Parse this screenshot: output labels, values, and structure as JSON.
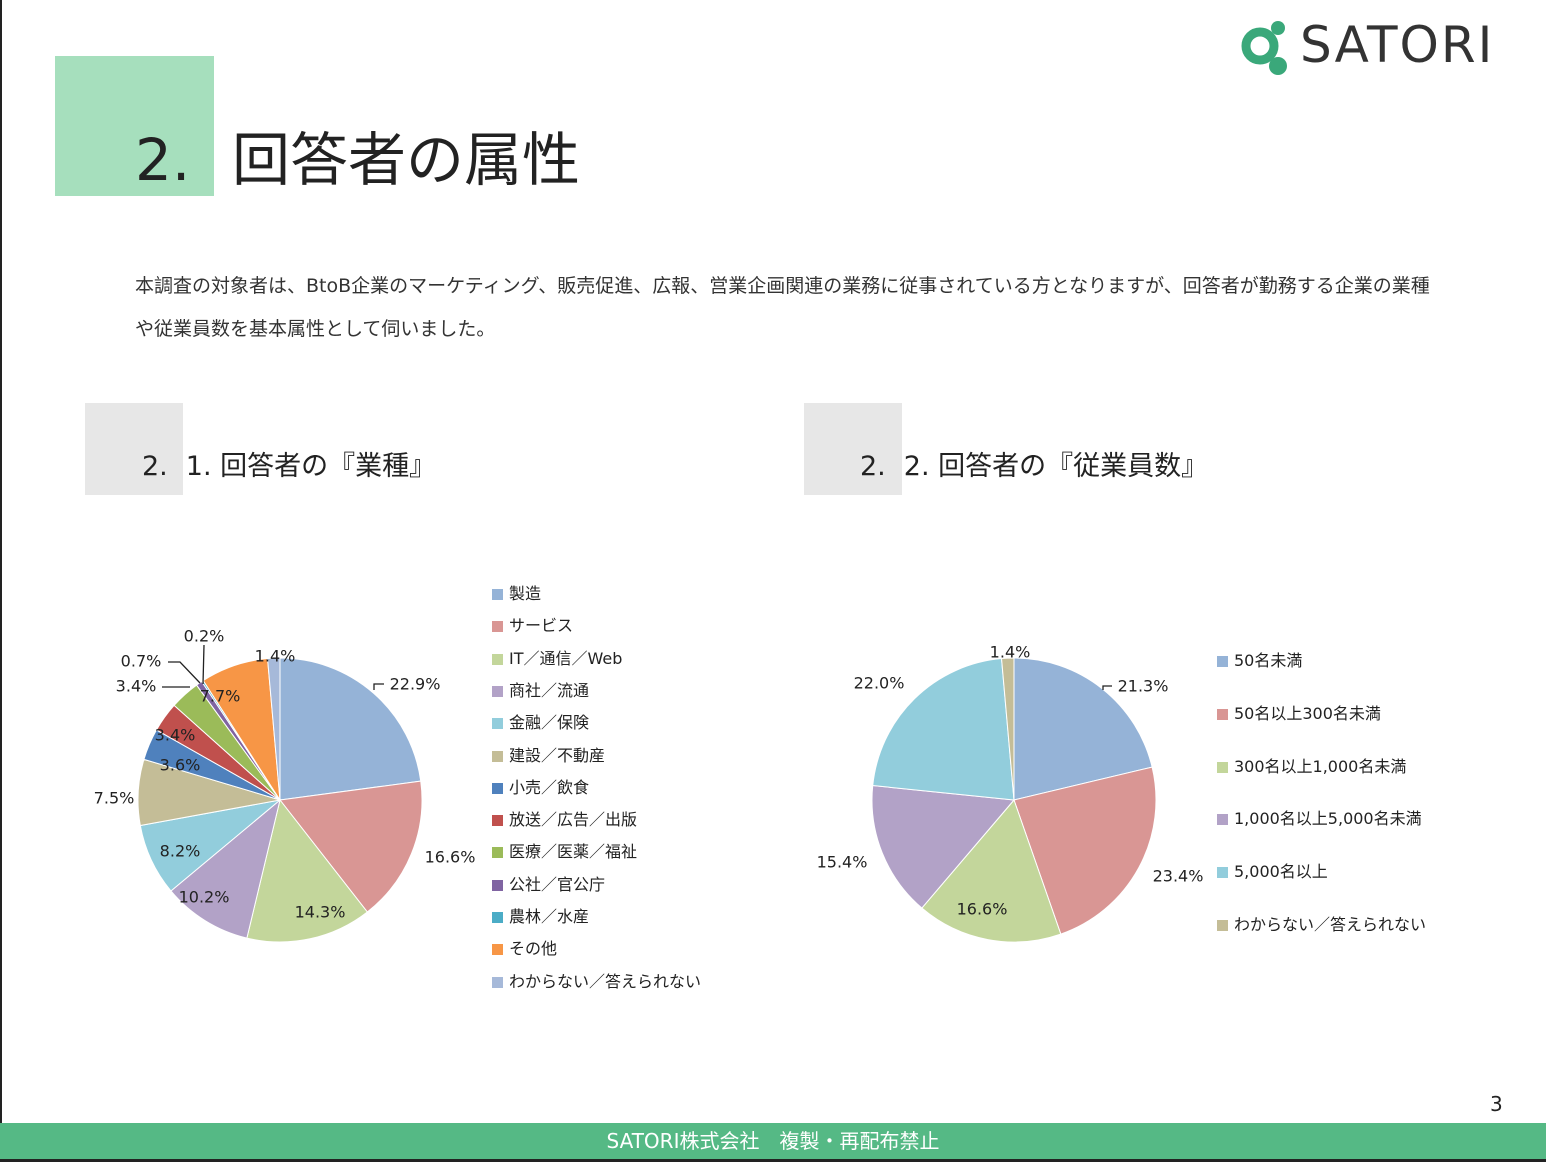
{
  "title": {
    "number": "2.",
    "text": "回答者の属性"
  },
  "logo": {
    "text": "SATORI",
    "color": "#3aa87a"
  },
  "intro": "本調査の対象者は、BtoB企業のマーケティング、販売促進、広報、営業企画関連の業務に従事されている方となりますが、回答者が勤務する企業の業種や従業員数を基本属性として伺いました。",
  "sections": [
    {
      "number": "2.",
      "title": "1. 回答者の『業種』"
    },
    {
      "number": "2.",
      "title": "2. 回答者の『従業員数』"
    }
  ],
  "chart_data": [
    {
      "type": "pie",
      "categories": [
        "製造",
        "サービス",
        "IT／通信／Web",
        "商社／流通",
        "金融／保険",
        "建設／不動産",
        "小売／飲食",
        "放送／広告／出版",
        "医療／医薬／福祉",
        "公社／官公庁",
        "農林／水産",
        "その他",
        "わからない／答えられない"
      ],
      "values": [
        22.9,
        16.6,
        14.3,
        10.2,
        8.2,
        7.5,
        3.6,
        3.4,
        3.4,
        0.7,
        0.2,
        7.7,
        1.4
      ],
      "value_labels": [
        "22.9%",
        "16.6%",
        "14.3%",
        "10.2%",
        "8.2%",
        "7.5%",
        "3.6%",
        "3.4%",
        "3.4%",
        "0.7%",
        "0.2%",
        "7.7%",
        "1.4%"
      ],
      "colors": [
        "#95b3d7",
        "#d99694",
        "#c3d69b",
        "#b2a2c7",
        "#92cddc",
        "#c4bd97",
        "#4f81bd",
        "#c0504d",
        "#9bbb59",
        "#8064a2",
        "#4bacc6",
        "#f79646",
        "#a6b9d9"
      ],
      "legend": "right"
    },
    {
      "type": "pie",
      "categories": [
        "50名未満",
        "50名以上300名未満",
        "300名以上1,000名未満",
        "1,000名以上5,000名未満",
        "5,000名以上",
        "わからない／答えられない"
      ],
      "values": [
        21.3,
        23.4,
        16.6,
        15.4,
        22.0,
        1.4
      ],
      "value_labels": [
        "21.3%",
        "23.4%",
        "16.6%",
        "15.4%",
        "22.0%",
        "1.4%"
      ],
      "colors": [
        "#95b3d7",
        "#d99694",
        "#c3d69b",
        "#b2a2c7",
        "#92cddc",
        "#c4bd97"
      ],
      "legend": "right"
    }
  ],
  "page_number": "3",
  "footer": "SATORI株式会社　複製・再配布禁止"
}
